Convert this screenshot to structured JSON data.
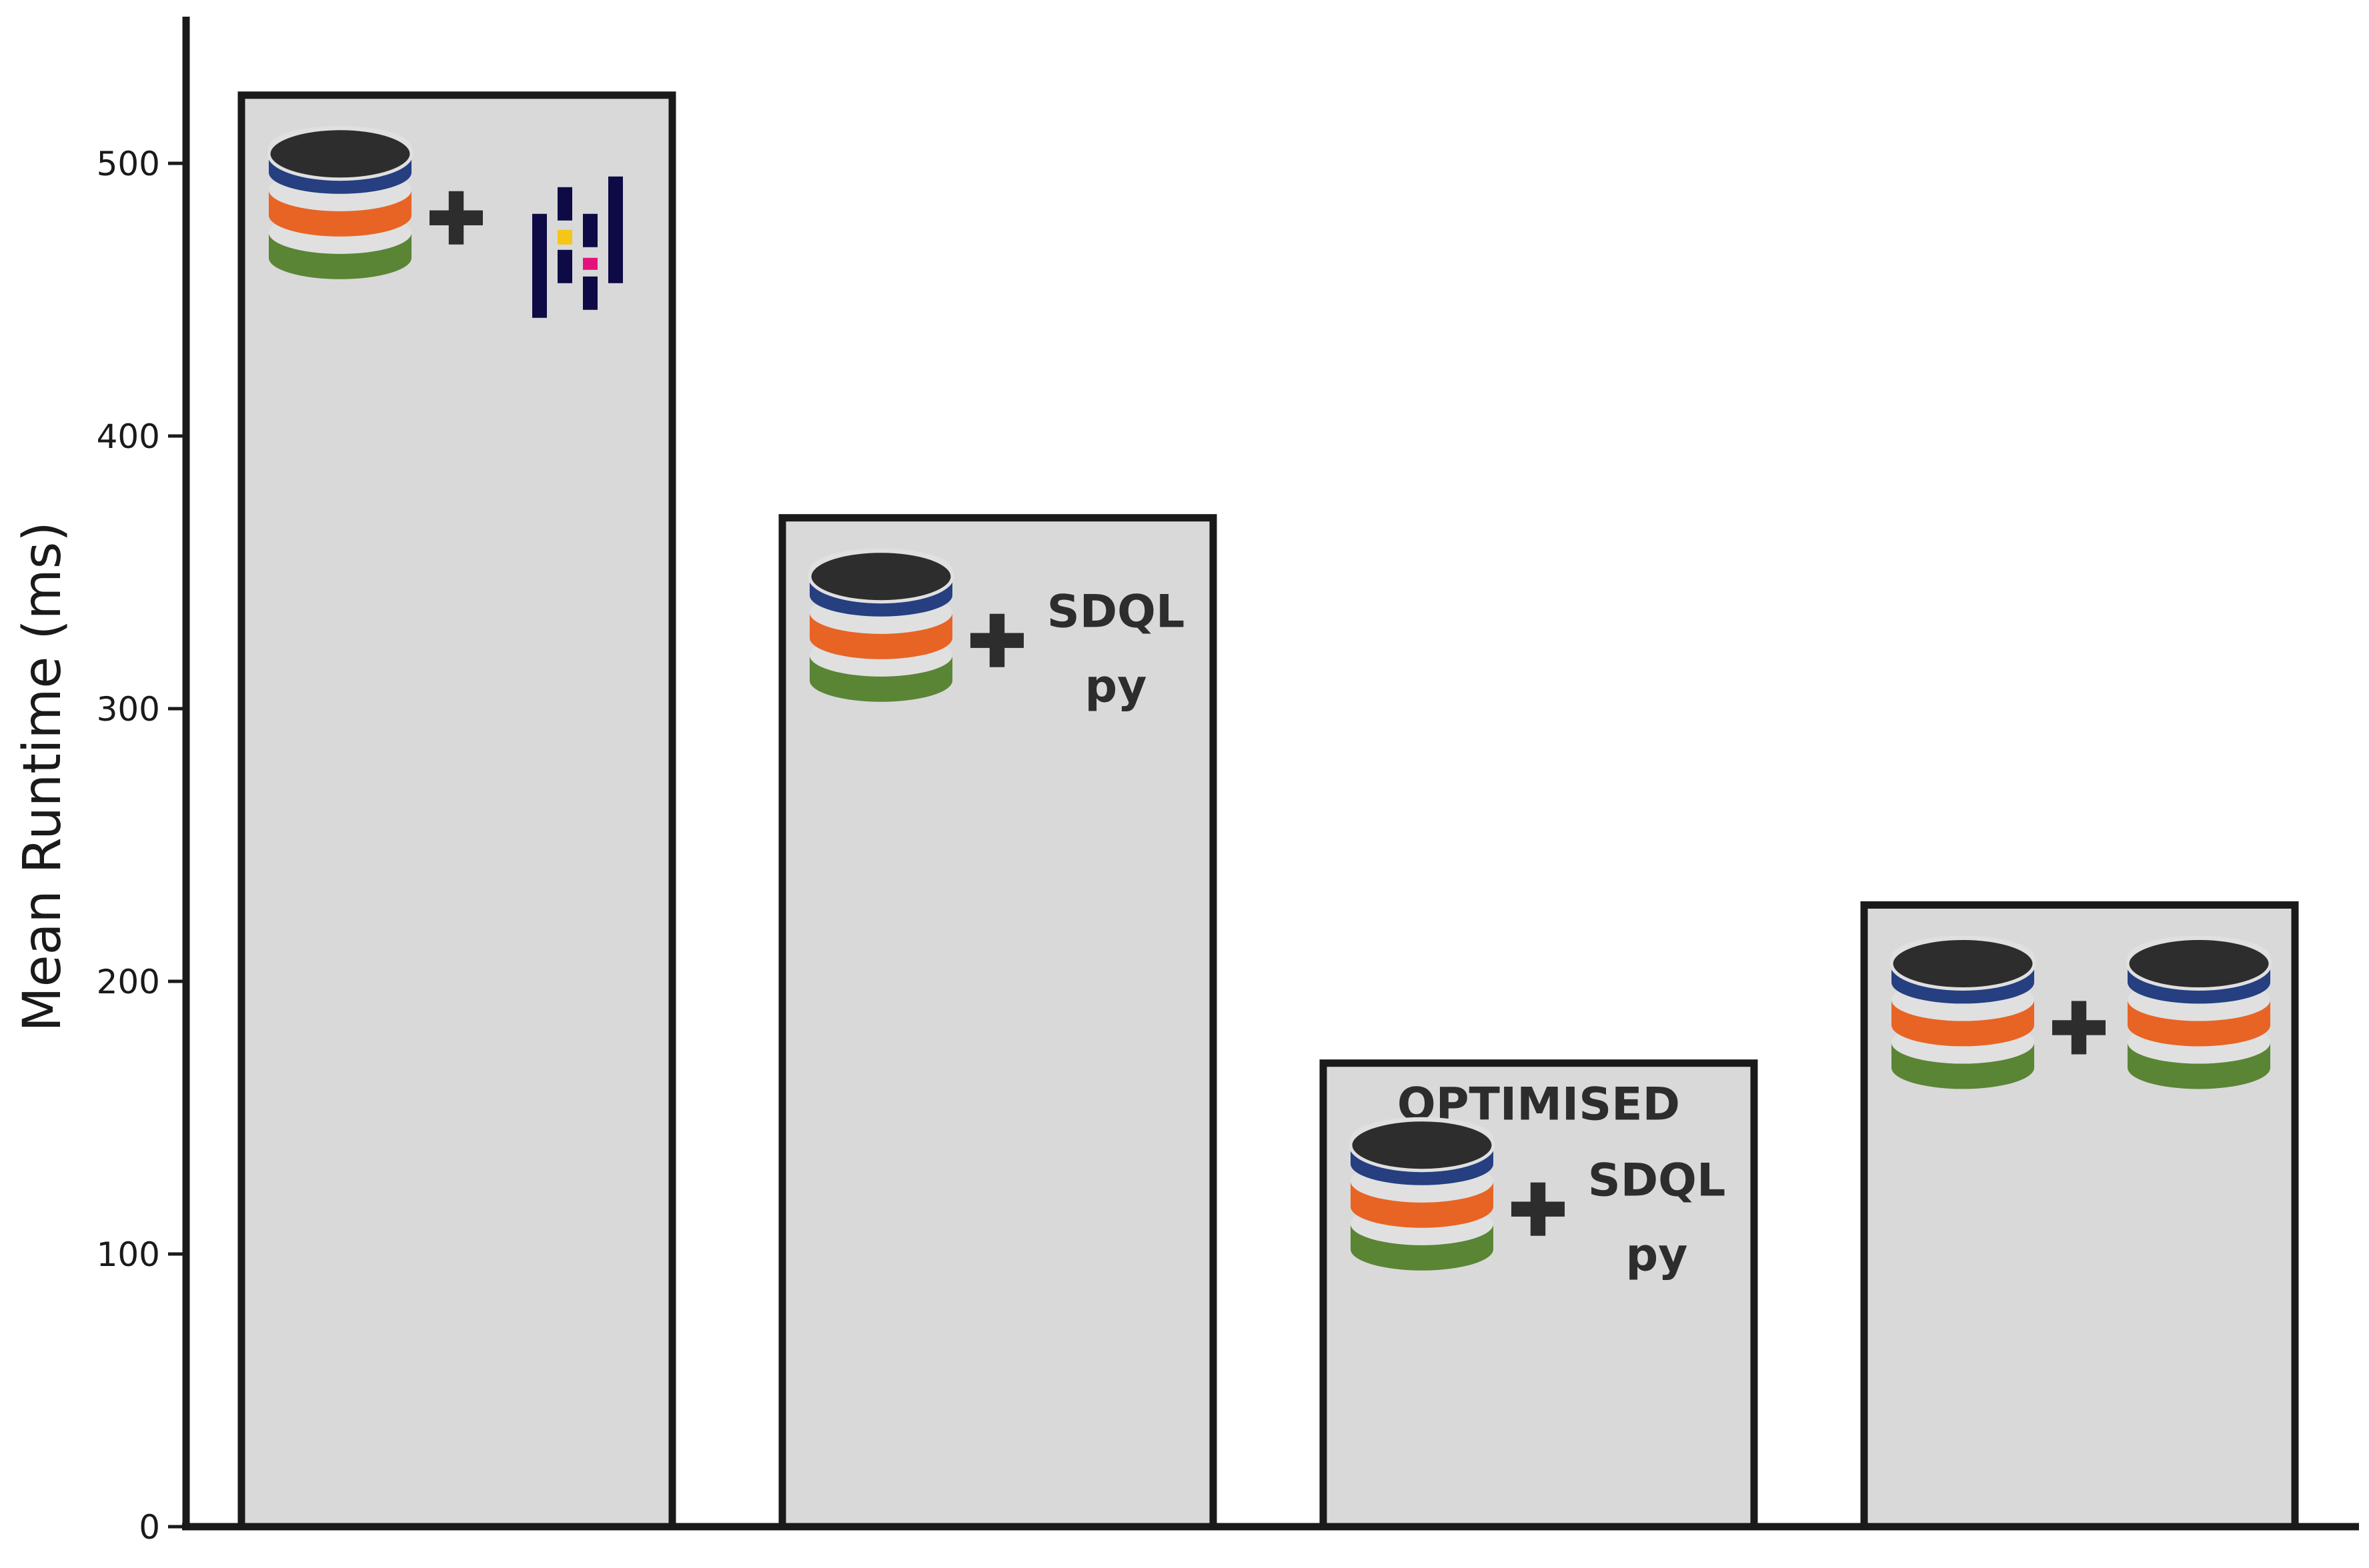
{
  "chart_data": {
    "type": "bar",
    "ylabel": "Mean Runtime (ms)",
    "ylim": [
      0,
      553
    ],
    "yticks": [
      0,
      100,
      200,
      300,
      400,
      500
    ],
    "grid": false,
    "values": [
      525,
      370,
      170,
      228
    ],
    "bar_color": "#d9d9d9",
    "bar_edge_color": "#1a1a1a",
    "annotations": [
      {
        "label_top": "",
        "pictogram": "database-plus-polars-logo",
        "right_text": []
      },
      {
        "label_top": "",
        "pictogram": "database-plus-sdqlpy",
        "right_text": [
          "SDQL",
          "py"
        ]
      },
      {
        "label_top": "OPTIMISED",
        "pictogram": "database-plus-sdqlpy",
        "right_text": [
          "SDQL",
          "py"
        ]
      },
      {
        "label_top": "",
        "pictogram": "database-plus-database",
        "right_text": []
      }
    ]
  },
  "colors": {
    "db_top": "#2d2d2d",
    "db_blue": "#253f80",
    "db_orange": "#e86424",
    "db_green": "#5a8535",
    "logo_navy": "#0d0a45",
    "logo_yellow": "#f5c518",
    "logo_pink": "#e5117a"
  }
}
